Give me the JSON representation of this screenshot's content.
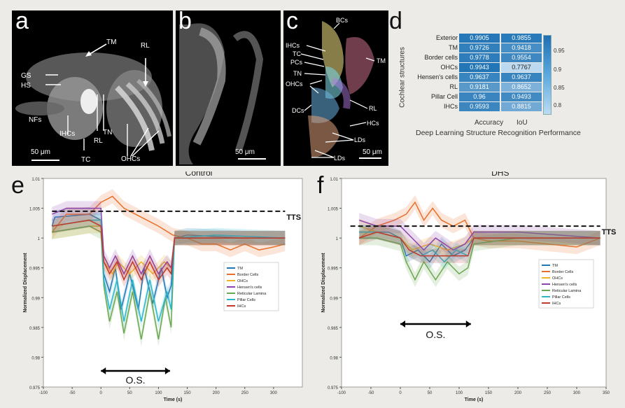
{
  "panel_a": {
    "letter": "a",
    "labels": {
      "tm": "TM",
      "rl": "RL",
      "gs": "GS",
      "hs": "HS",
      "nfs": "NFs",
      "ihcs": "IHCs",
      "tc": "TC",
      "tn": "TN",
      "rl2": "RL",
      "ohcs": "OHCs"
    },
    "scale": "50 μm"
  },
  "panel_b": {
    "letter": "b",
    "scale": "50 μm"
  },
  "panel_c": {
    "letter": "c",
    "labels": {
      "bcs": "BCs",
      "ihcs": "IHCs",
      "tc": "TC",
      "pcs": "PCs",
      "tn": "TN",
      "ohcs": "OHCs",
      "dcs": "DCs",
      "tm": "TM",
      "rl": "RL",
      "hcs": "HCs",
      "lds1": "LDs",
      "lds2": "LDs"
    },
    "scale": "50 μm"
  },
  "panel_d": {
    "letter": "d",
    "ylabel": "Cochlear structures",
    "columns": [
      "Accuracy",
      "IoU"
    ],
    "title": "Deep Learning Structure Recognition Performance",
    "colorbar_ticks": [
      "0.95",
      "0.9",
      "0.85",
      "0.8"
    ],
    "rows": [
      {
        "name": "Exterior",
        "acc": "0.9905",
        "iou": "0.9855"
      },
      {
        "name": "TM",
        "acc": "0.9726",
        "iou": "0.9418"
      },
      {
        "name": "Border cells",
        "acc": "0.9778",
        "iou": "0.9554"
      },
      {
        "name": "OHCs",
        "acc": "0.9943",
        "iou": "0.7767"
      },
      {
        "name": "Hensen's cells",
        "acc": "0.9637",
        "iou": "0.9637"
      },
      {
        "name": "RL",
        "acc": "0.9181",
        "iou": "0.8652"
      },
      {
        "name": "Pillar Cell",
        "acc": "0.96",
        "iou": "0.9493"
      },
      {
        "name": "IHCs",
        "acc": "0.9593",
        "iou": "0.8815"
      }
    ]
  },
  "chart_data": [
    {
      "type": "line",
      "panel": "e",
      "title": "Control",
      "xlabel": "Time (s)",
      "ylabel": "Normalized Displacement",
      "xlim": [
        -100,
        350
      ],
      "ylim": [
        0.975,
        1.01
      ],
      "xticks": [
        "-100",
        "-50",
        "0",
        "50",
        "100",
        "150",
        "200",
        "250",
        "300"
      ],
      "yticks": [
        "1.01",
        "1.005",
        "1",
        "0.995",
        "0.99",
        "0.985",
        "0.98",
        "0.975"
      ],
      "annotations": [
        "TTS",
        "O.S."
      ],
      "series": [
        {
          "name": "TM",
          "color": "#1f77b4",
          "values": [
            [
              -85,
              1.002
            ],
            [
              -80,
              1.0035
            ],
            [
              -20,
              1.004
            ],
            [
              0,
              1.003
            ],
            [
              5,
              0.994
            ],
            [
              15,
              0.991
            ],
            [
              25,
              0.995
            ],
            [
              35,
              0.988
            ],
            [
              50,
              0.994
            ],
            [
              65,
              0.988
            ],
            [
              75,
              0.995
            ],
            [
              90,
              0.989
            ],
            [
              105,
              0.995
            ],
            [
              115,
              0.99
            ],
            [
              122,
              0.992
            ],
            [
              128,
              1.0
            ],
            [
              150,
              1.0005
            ],
            [
              250,
              1.0
            ],
            [
              320,
              1.0
            ]
          ]
        },
        {
          "name": "Border Cells",
          "color": "#e8702a",
          "values": [
            [
              -85,
              1.001
            ],
            [
              -60,
              1.004
            ],
            [
              -20,
              1.004
            ],
            [
              0,
              1.006
            ],
            [
              20,
              1.007
            ],
            [
              40,
              1.005
            ],
            [
              60,
              1.004
            ],
            [
              80,
              1.003
            ],
            [
              100,
              1.002
            ],
            [
              125,
              1.0005
            ],
            [
              150,
              1.0
            ],
            [
              175,
              0.999
            ],
            [
              200,
              0.999
            ],
            [
              225,
              0.998
            ],
            [
              250,
              0.999
            ],
            [
              275,
              0.998
            ],
            [
              300,
              0.9985
            ],
            [
              320,
              0.999
            ]
          ]
        },
        {
          "name": "OHCs",
          "color": "#f0b323",
          "values": [
            [
              -85,
              1.001
            ],
            [
              -20,
              1.002
            ],
            [
              0,
              1.002
            ],
            [
              5,
              0.996
            ],
            [
              20,
              0.994
            ],
            [
              30,
              0.996
            ],
            [
              50,
              0.994
            ],
            [
              70,
              0.996
            ],
            [
              90,
              0.994
            ],
            [
              110,
              0.996
            ],
            [
              122,
              0.995
            ],
            [
              128,
              1.0
            ],
            [
              200,
              1.0
            ],
            [
              320,
              1.0
            ]
          ]
        },
        {
          "name": "Hensen's cells",
          "color": "#8e44ad",
          "values": [
            [
              -85,
              1.004
            ],
            [
              -60,
              1.005
            ],
            [
              -20,
              1.005
            ],
            [
              0,
              1.005
            ],
            [
              5,
              0.997
            ],
            [
              15,
              0.995
            ],
            [
              25,
              0.997
            ],
            [
              40,
              0.994
            ],
            [
              55,
              0.997
            ],
            [
              70,
              0.994
            ],
            [
              85,
              0.997
            ],
            [
              100,
              0.994
            ],
            [
              115,
              0.996
            ],
            [
              122,
              0.995
            ],
            [
              128,
              1.0
            ],
            [
              200,
              1.0
            ],
            [
              320,
              1.0
            ]
          ]
        },
        {
          "name": "Reticular Lamina",
          "color": "#6aa84f",
          "values": [
            [
              -85,
              1.001
            ],
            [
              -20,
              1.002
            ],
            [
              0,
              1.001
            ],
            [
              5,
              0.992
            ],
            [
              15,
              0.986
            ],
            [
              28,
              0.991
            ],
            [
              40,
              0.984
            ],
            [
              55,
              0.991
            ],
            [
              70,
              0.983
            ],
            [
              85,
              0.991
            ],
            [
              100,
              0.983
            ],
            [
              112,
              0.99
            ],
            [
              122,
              0.985
            ],
            [
              128,
              1.0
            ],
            [
              200,
              1.0
            ],
            [
              320,
              1.0
            ]
          ]
        },
        {
          "name": "Pillar Cells",
          "color": "#2bb5c9",
          "values": [
            [
              -85,
              1.002
            ],
            [
              -20,
              1.003
            ],
            [
              0,
              1.003
            ],
            [
              5,
              0.993
            ],
            [
              15,
              0.988
            ],
            [
              28,
              0.993
            ],
            [
              40,
              0.986
            ],
            [
              55,
              0.993
            ],
            [
              70,
              0.986
            ],
            [
              85,
              0.993
            ],
            [
              100,
              0.986
            ],
            [
              115,
              0.991
            ],
            [
              122,
              0.988
            ],
            [
              128,
              1.0
            ],
            [
              200,
              1.0005
            ],
            [
              320,
              1.0
            ]
          ]
        },
        {
          "name": "IHCs",
          "color": "#c0392b",
          "values": [
            [
              -85,
              1.002
            ],
            [
              -20,
              1.003
            ],
            [
              0,
              1.002
            ],
            [
              5,
              0.996
            ],
            [
              15,
              0.994
            ],
            [
              28,
              0.996
            ],
            [
              40,
              0.993
            ],
            [
              55,
              0.996
            ],
            [
              70,
              0.993
            ],
            [
              85,
              0.996
            ],
            [
              100,
              0.993
            ],
            [
              115,
              0.995
            ],
            [
              122,
              0.994
            ],
            [
              128,
              1.0
            ],
            [
              200,
              1.0
            ],
            [
              320,
              1.0
            ]
          ]
        }
      ],
      "threshold": {
        "y": 1.0045,
        "from": -85,
        "to": 320
      }
    },
    {
      "type": "line",
      "panel": "f",
      "title": "DHS",
      "xlabel": "Time (s)",
      "ylabel": "Normalized Displacement",
      "xlim": [
        -100,
        350
      ],
      "ylim": [
        0.975,
        1.01
      ],
      "xticks": [
        "-100",
        "-50",
        "0",
        "50",
        "100",
        "150",
        "200",
        "250",
        "300",
        "350"
      ],
      "yticks": [
        "1.01",
        "1.005",
        "1",
        "0.995",
        "0.99",
        "0.985",
        "0.98",
        "0.975"
      ],
      "annotations": [
        "TTS",
        "O.S."
      ],
      "series": [
        {
          "name": "TM",
          "color": "#1f77b4",
          "values": [
            [
              -70,
              1.001
            ],
            [
              -20,
              1.001
            ],
            [
              0,
              1.0
            ],
            [
              10,
              0.997
            ],
            [
              30,
              0.998
            ],
            [
              50,
              0.996
            ],
            [
              70,
              0.999
            ],
            [
              90,
              0.997
            ],
            [
              110,
              0.998
            ],
            [
              125,
              1.0
            ],
            [
              200,
              1.0
            ],
            [
              340,
              1.0
            ]
          ]
        },
        {
          "name": "Border Cells",
          "color": "#e8702a",
          "values": [
            [
              -70,
              1.0
            ],
            [
              -40,
              1.002
            ],
            [
              -10,
              1.003
            ],
            [
              10,
              1.004
            ],
            [
              25,
              1.006
            ],
            [
              40,
              1.003
            ],
            [
              55,
              1.005
            ],
            [
              70,
              1.003
            ],
            [
              90,
              1.002
            ],
            [
              110,
              1.003
            ],
            [
              125,
              1.0
            ],
            [
              150,
              0.9995
            ],
            [
              200,
              0.9995
            ],
            [
              250,
              0.999
            ],
            [
              300,
              0.9985
            ],
            [
              340,
              1.0
            ]
          ]
        },
        {
          "name": "OHCs",
          "color": "#f0b323",
          "values": [
            [
              -70,
              1.002
            ],
            [
              -40,
              1.001
            ],
            [
              0,
              1.0
            ],
            [
              20,
              0.998
            ],
            [
              50,
              0.999
            ],
            [
              80,
              0.998
            ],
            [
              110,
              0.999
            ],
            [
              125,
              1.0
            ],
            [
              200,
              1.0
            ],
            [
              340,
              1.0
            ]
          ]
        },
        {
          "name": "Hensen's cells",
          "color": "#8e44ad",
          "values": [
            [
              -70,
              1.003
            ],
            [
              -40,
              1.002
            ],
            [
              0,
              1.002
            ],
            [
              20,
              1.0
            ],
            [
              40,
              0.998
            ],
            [
              60,
              1.0
            ],
            [
              90,
              0.998
            ],
            [
              110,
              0.999
            ],
            [
              125,
              1.001
            ],
            [
              200,
              1.001
            ],
            [
              340,
              1.0
            ]
          ]
        },
        {
          "name": "Reticular Lamina",
          "color": "#6aa84f",
          "values": [
            [
              -70,
              1.0
            ],
            [
              -40,
              1.0
            ],
            [
              0,
              0.999
            ],
            [
              10,
              0.996
            ],
            [
              25,
              0.993
            ],
            [
              40,
              0.996
            ],
            [
              60,
              0.993
            ],
            [
              80,
              0.996
            ],
            [
              100,
              0.994
            ],
            [
              115,
              0.995
            ],
            [
              125,
              0.999
            ],
            [
              200,
              1.0
            ],
            [
              340,
              1.0
            ]
          ]
        },
        {
          "name": "Pillar Cells",
          "color": "#2bb5c9",
          "values": [
            [
              -70,
              1.001
            ],
            [
              -40,
              1.001
            ],
            [
              0,
              1.0
            ],
            [
              15,
              0.998
            ],
            [
              35,
              0.997
            ],
            [
              55,
              0.998
            ],
            [
              75,
              0.996
            ],
            [
              95,
              0.998
            ],
            [
              115,
              0.997
            ],
            [
              125,
              1.0
            ],
            [
              200,
              1.0
            ],
            [
              340,
              1.0
            ]
          ]
        },
        {
          "name": "IHCs",
          "color": "#c0392b",
          "values": [
            [
              -70,
              1.0
            ],
            [
              -40,
              1.001
            ],
            [
              0,
              1.0
            ],
            [
              15,
              0.998
            ],
            [
              35,
              0.997
            ],
            [
              55,
              0.997
            ],
            [
              75,
              0.997
            ],
            [
              95,
              0.997
            ],
            [
              115,
              0.997
            ],
            [
              125,
              1.0
            ],
            [
              200,
              1.0
            ],
            [
              340,
              1.0
            ]
          ]
        }
      ],
      "threshold": {
        "y": 1.002,
        "from": -85,
        "to": 340
      }
    }
  ]
}
